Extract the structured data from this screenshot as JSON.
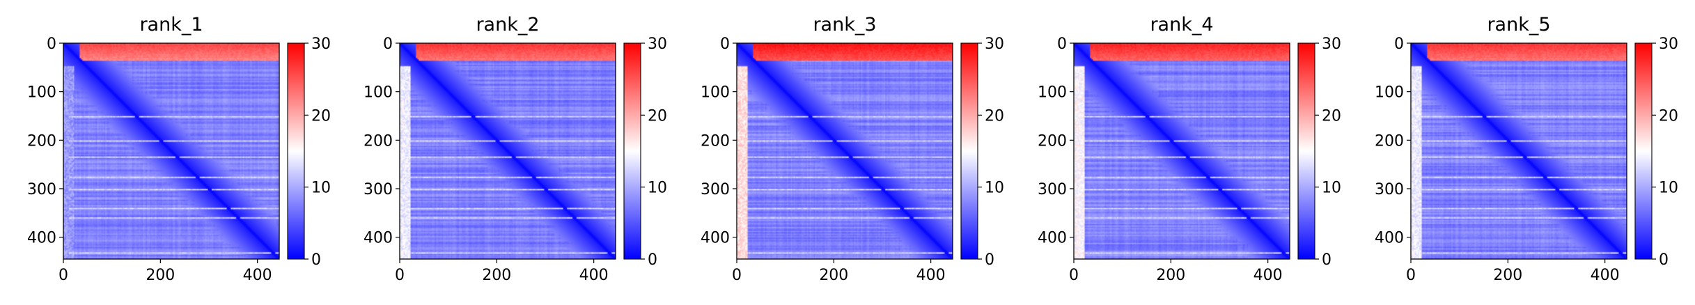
{
  "figure": {
    "panel_count": 5
  },
  "colors": {
    "low": "#0000ff",
    "mid": "#ffffff",
    "high": "#ff0000",
    "axis": "#000000"
  },
  "chart_data": [
    {
      "type": "heatmap",
      "title": "rank_1",
      "matrix_size": 445,
      "xlim": [
        0,
        445
      ],
      "ylim": [
        0,
        445
      ],
      "xticks": [
        0,
        200,
        400
      ],
      "yticks": [
        0,
        100,
        200,
        300,
        400
      ],
      "colorbar": {
        "range": [
          0,
          30
        ],
        "ticks": [
          0,
          10,
          20,
          30
        ],
        "colormap": "bwr"
      },
      "features": {
        "diagonal_value": 0,
        "background_value": 5,
        "top_band_rows": [
          0,
          35
        ],
        "top_band_value": 27,
        "left_band_value": 9,
        "bright_rows": [
          150,
          200,
          235,
          275,
          300,
          340,
          360,
          430
        ]
      }
    },
    {
      "type": "heatmap",
      "title": "rank_2",
      "matrix_size": 445,
      "xlim": [
        0,
        445
      ],
      "ylim": [
        0,
        445
      ],
      "xticks": [
        0,
        200,
        400
      ],
      "yticks": [
        0,
        100,
        200,
        300,
        400
      ],
      "colorbar": {
        "range": [
          0,
          30
        ],
        "ticks": [
          0,
          10,
          20,
          30
        ],
        "colormap": "bwr"
      },
      "features": {
        "diagonal_value": 0,
        "background_value": 5,
        "top_band_rows": [
          0,
          35
        ],
        "top_band_value": 28,
        "left_band_value": 14,
        "bright_rows": [
          150,
          200,
          235,
          275,
          300,
          340,
          360,
          430
        ]
      }
    },
    {
      "type": "heatmap",
      "title": "rank_3",
      "matrix_size": 445,
      "xlim": [
        0,
        445
      ],
      "ylim": [
        0,
        445
      ],
      "xticks": [
        0,
        200,
        400
      ],
      "yticks": [
        0,
        100,
        200,
        300,
        400
      ],
      "colorbar": {
        "range": [
          0,
          30
        ],
        "ticks": [
          0,
          10,
          20,
          30
        ],
        "colormap": "bwr"
      },
      "features": {
        "diagonal_value": 0,
        "background_value": 5,
        "top_band_rows": [
          0,
          35
        ],
        "top_band_value": 30,
        "left_band_value": 17,
        "bright_rows": [
          150,
          200,
          235,
          275,
          300,
          340,
          360,
          430
        ]
      }
    },
    {
      "type": "heatmap",
      "title": "rank_4",
      "matrix_size": 445,
      "xlim": [
        0,
        445
      ],
      "ylim": [
        0,
        445
      ],
      "xticks": [
        0,
        200,
        400
      ],
      "yticks": [
        0,
        100,
        200,
        300,
        400
      ],
      "colorbar": {
        "range": [
          0,
          30
        ],
        "ticks": [
          0,
          10,
          20,
          30
        ],
        "colormap": "bwr"
      },
      "features": {
        "diagonal_value": 0,
        "background_value": 5,
        "top_band_rows": [
          0,
          35
        ],
        "top_band_value": 29,
        "left_band_value": 15,
        "bright_rows": [
          150,
          200,
          235,
          275,
          300,
          340,
          360,
          430
        ]
      }
    },
    {
      "type": "heatmap",
      "title": "rank_5",
      "matrix_size": 445,
      "xlim": [
        0,
        445
      ],
      "ylim": [
        0,
        445
      ],
      "xticks": [
        0,
        200,
        400
      ],
      "yticks": [
        0,
        100,
        200,
        300,
        400
      ],
      "colorbar": {
        "range": [
          0,
          30
        ],
        "ticks": [
          0,
          10,
          20,
          30
        ],
        "colormap": "bwr"
      },
      "features": {
        "diagonal_value": 0,
        "background_value": 5,
        "top_band_rows": [
          0,
          35
        ],
        "top_band_value": 28,
        "left_band_value": 14,
        "bright_rows": [
          150,
          200,
          235,
          275,
          300,
          340,
          360,
          430
        ]
      }
    }
  ]
}
